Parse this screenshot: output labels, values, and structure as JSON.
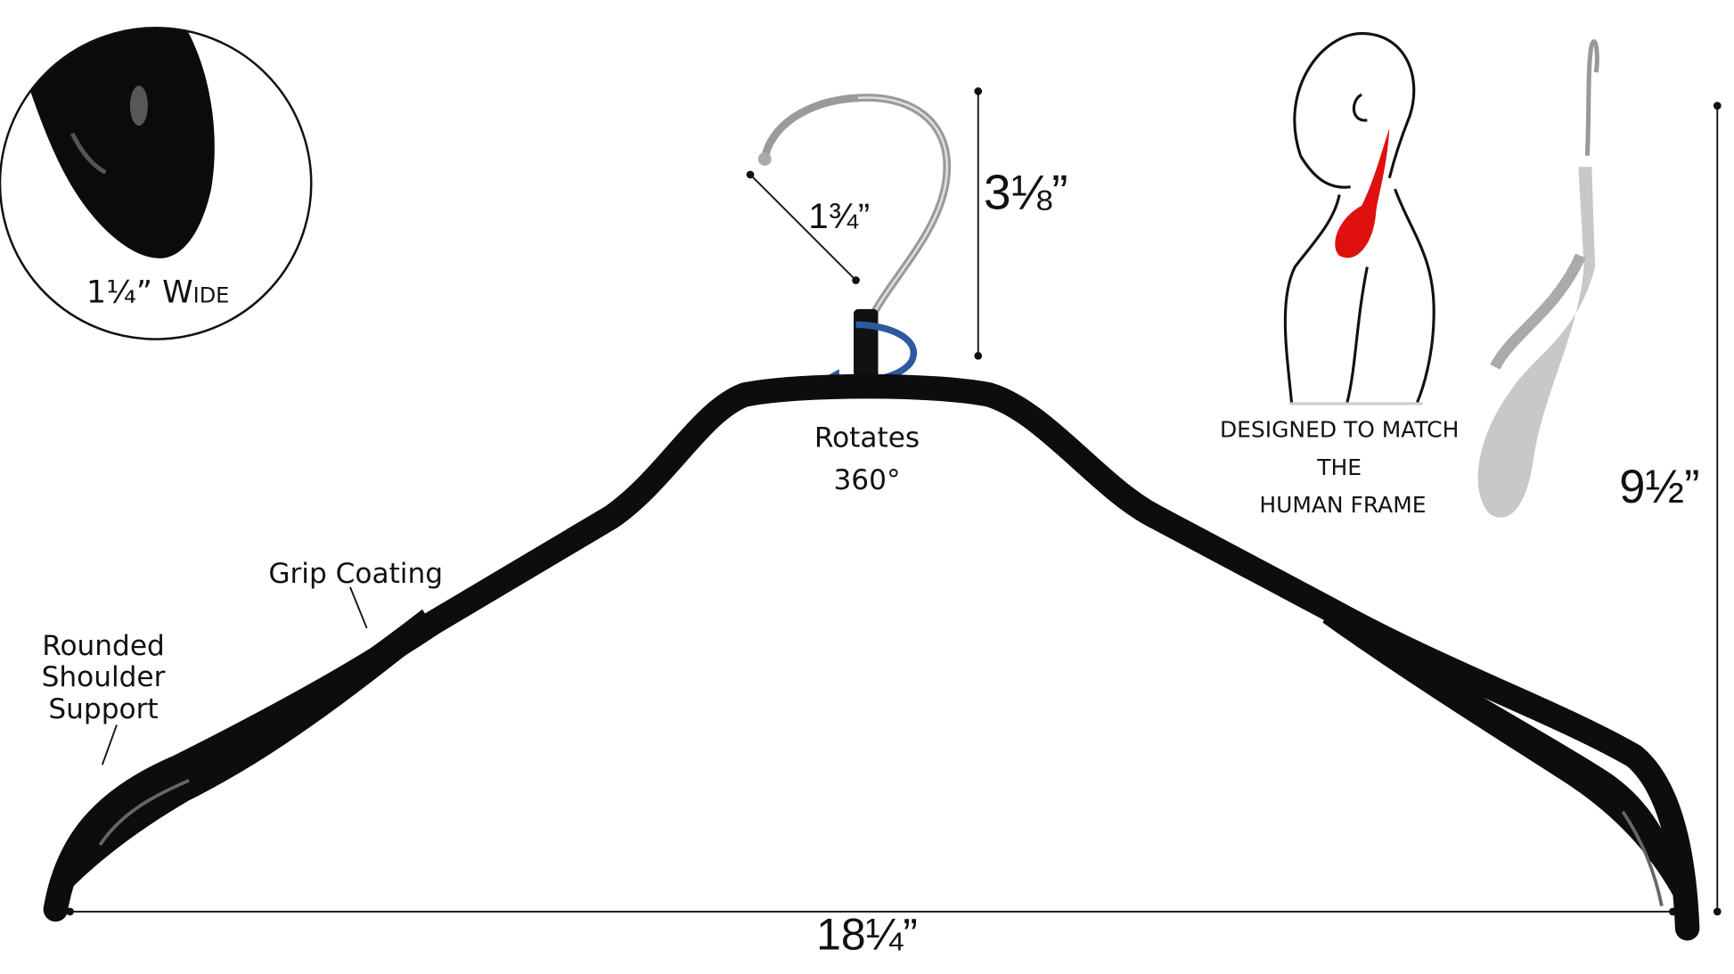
{
  "callout": {
    "label": "1¼” Wide"
  },
  "hook": {
    "diameter": "1¾”",
    "height": "3⅛”"
  },
  "rotation": {
    "lines": [
      "Rotates",
      "360°"
    ]
  },
  "grip": {
    "label": "Grip Coating"
  },
  "shoulder": {
    "lines": [
      "Rounded",
      "Shoulder",
      "Support"
    ]
  },
  "human_frame": {
    "lines": [
      "DESIGNED TO MATCH",
      "THE",
      "HUMAN FRAME"
    ]
  },
  "dimensions": {
    "height": "9½”",
    "width": "18¼”"
  }
}
